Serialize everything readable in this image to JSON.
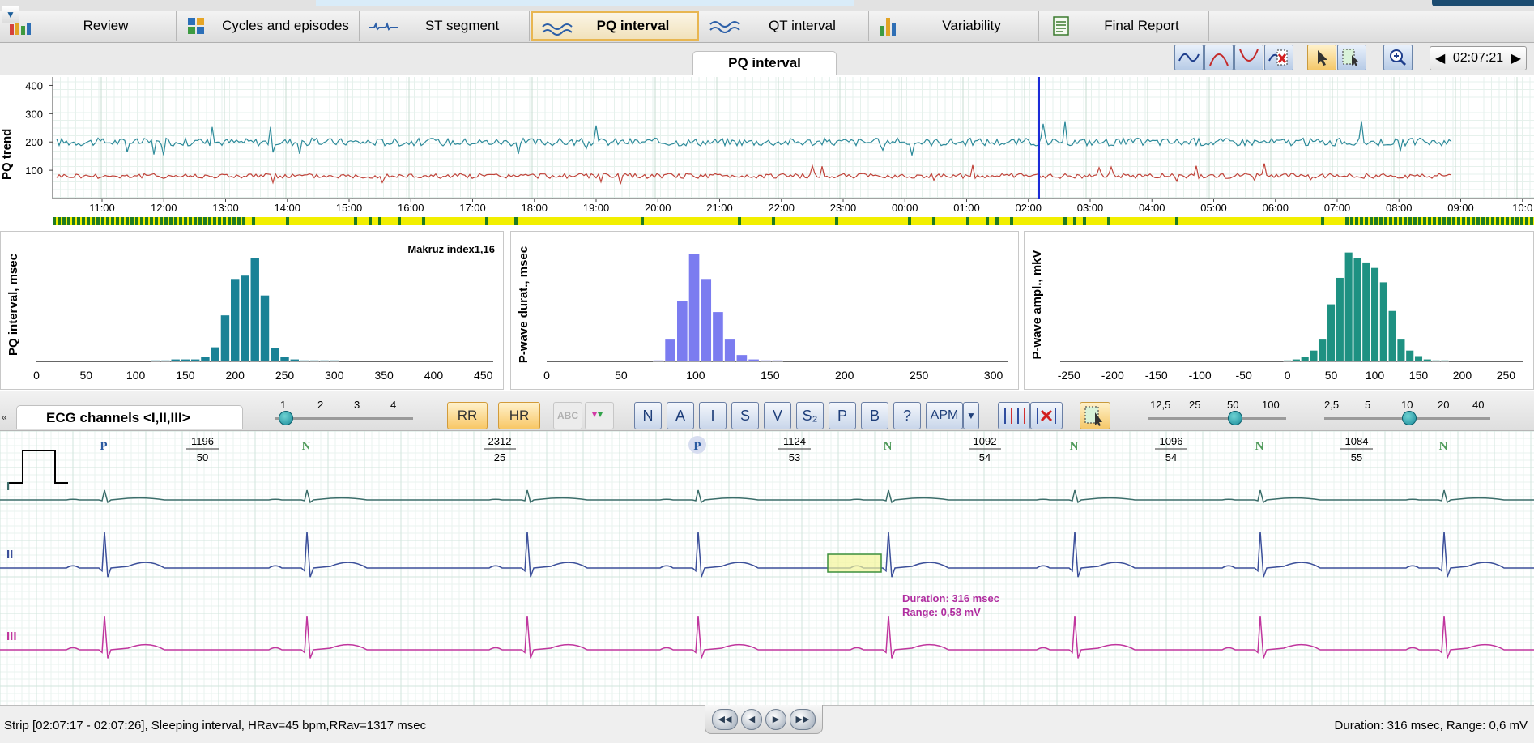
{
  "tabs": [
    {
      "label": "Review",
      "icon": "bar-chart-icon",
      "active": false
    },
    {
      "label": "Cycles and episodes",
      "icon": "grid-icon",
      "active": false
    },
    {
      "label": "ST segment",
      "icon": "st-wave-icon",
      "active": false
    },
    {
      "label": "PQ interval",
      "icon": "pq-wave-icon",
      "active": true
    },
    {
      "label": "QT interval",
      "icon": "qt-wave-icon",
      "active": false
    },
    {
      "label": "Variability",
      "icon": "variability-chart-icon",
      "active": false
    },
    {
      "label": "Final Report",
      "icon": "report-icon",
      "active": false
    }
  ],
  "panel_title": "PQ interval",
  "toolbar_icons": [
    "wave-shape-icon",
    "arch-up-icon",
    "arch-down-icon",
    "delete-wave-icon",
    "pointer-select-icon",
    "region-select-icon",
    "zoom-icon"
  ],
  "time_display": {
    "value": "02:07:21",
    "prev": "◀",
    "next": "▶"
  },
  "trend": {
    "ylabel": "PQ trend",
    "yticks": [
      "400",
      "300",
      "200",
      "100"
    ],
    "xticks": [
      "11:00",
      "12:00",
      "13:00",
      "14:00",
      "15:00",
      "16:00",
      "17:00",
      "18:00",
      "19:00",
      "20:00",
      "21:00",
      "22:00",
      "23:00",
      "00:00",
      "01:00",
      "02:00",
      "03:00",
      "04:00",
      "05:00",
      "06:00",
      "07:00",
      "08:00",
      "09:00",
      "10:0"
    ],
    "series": [
      {
        "color": "#2c8a9a",
        "level": 200
      },
      {
        "color": "#c0433a",
        "level": 80
      }
    ],
    "cursor_time": "02:07:21"
  },
  "histograms": [
    {
      "ylabel": "PQ interval, msec",
      "annotation": "Makruz index1,16",
      "xticks": [
        "0",
        "50",
        "100",
        "150",
        "200",
        "250",
        "300",
        "350",
        "400",
        "450"
      ],
      "color": "#1a8296",
      "chart_data": {
        "type": "bar",
        "x": [
          120,
          130,
          140,
          150,
          160,
          170,
          180,
          190,
          200,
          210,
          220,
          230,
          240,
          250,
          260,
          270,
          280,
          290,
          300
        ],
        "values": [
          0.01,
          0.01,
          0.02,
          0.02,
          0.02,
          0.04,
          0.13,
          0.42,
          0.75,
          0.78,
          0.94,
          0.6,
          0.12,
          0.04,
          0.02,
          0.01,
          0.01,
          0.01,
          0.01
        ],
        "xlim": [
          0,
          460
        ]
      }
    },
    {
      "ylabel": "P-wave durat., msec",
      "annotation": "",
      "xticks": [
        "0",
        "50",
        "100",
        "150",
        "200",
        "250",
        "300"
      ],
      "color": "#7b7cf0",
      "chart_data": {
        "type": "bar",
        "x": [
          75,
          83,
          91,
          99,
          107,
          115,
          123,
          131,
          139,
          147,
          155
        ],
        "values": [
          0.01,
          0.2,
          0.55,
          0.98,
          0.75,
          0.45,
          0.2,
          0.06,
          0.02,
          0.01,
          0.01
        ],
        "xlim": [
          0,
          310
        ]
      }
    },
    {
      "ylabel": "P-wave ampl., mkV",
      "annotation": "",
      "xticks": [
        "-250",
        "-200",
        "-150",
        "-100",
        "-50",
        "0",
        "50",
        "100",
        "150",
        "200",
        "250"
      ],
      "color": "#1e9182",
      "chart_data": {
        "type": "bar",
        "x": [
          0,
          10,
          20,
          30,
          40,
          50,
          60,
          70,
          80,
          90,
          100,
          110,
          120,
          130,
          140,
          150,
          160,
          170,
          180
        ],
        "values": [
          0.01,
          0.02,
          0.04,
          0.1,
          0.2,
          0.52,
          0.76,
          0.99,
          0.94,
          0.9,
          0.85,
          0.72,
          0.46,
          0.2,
          0.1,
          0.05,
          0.02,
          0.01,
          0.01
        ],
        "xlim": [
          -260,
          270
        ]
      }
    }
  ],
  "ecg_toolbar": {
    "tab_label": "ECG channels <I,II,III>",
    "scale_ticks": [
      "1",
      "2",
      "3",
      "4"
    ],
    "rr_label": "RR",
    "hr_label": "HR",
    "abc_label": "ABC",
    "beat_buttons": [
      "N",
      "A",
      "I",
      "S",
      "V",
      "S₂",
      "P",
      "B",
      "?"
    ],
    "apm_label": "APM",
    "speed_ticks": [
      "12,5",
      "25",
      "50",
      "100"
    ],
    "gain_ticks": [
      "2,5",
      "5",
      "10",
      "20",
      "40"
    ]
  },
  "ecg": {
    "channels": [
      "I",
      "II",
      "III"
    ],
    "channel_colors": [
      "#3b6d6a",
      "#3b4f9a",
      "#c0369e"
    ],
    "beats": [
      {
        "label": "P",
        "rr": "1196",
        "hr": "50"
      },
      {
        "label": "N",
        "rr": "",
        "hr": ""
      },
      {
        "label": "",
        "rr": "2312",
        "hr": "25"
      },
      {
        "label": "P",
        "rr": "1124",
        "hr": "53"
      },
      {
        "label": "N",
        "rr": "1092",
        "hr": "54"
      },
      {
        "label": "N",
        "rr": "1096",
        "hr": "54"
      },
      {
        "label": "N",
        "rr": "1084",
        "hr": "55"
      },
      {
        "label": "N",
        "rr": "",
        "hr": ""
      }
    ],
    "measurement": {
      "duration": "Duration: 316 msec",
      "range": "Range: 0,58 mV"
    }
  },
  "status": {
    "left": "Strip [02:07:17 - 02:07:26], Sleeping interval,  HRav=45 bpm,RRav=1317 msec",
    "right": "Duration: 316 msec, Range: 0,6 mV"
  },
  "nav_buttons": [
    "◀◀",
    "◀",
    "▶",
    "▶▶"
  ]
}
